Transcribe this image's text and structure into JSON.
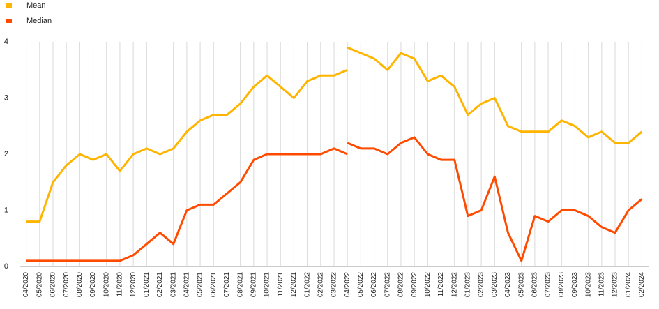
{
  "chart_data": {
    "type": "line",
    "categories": [
      "04/2020",
      "05/2020",
      "06/2020",
      "07/2020",
      "08/2020",
      "09/2020",
      "10/2020",
      "11/2020",
      "12/2020",
      "01/2021",
      "02/2021",
      "03/2021",
      "04/2021",
      "05/2021",
      "06/2021",
      "07/2021",
      "08/2021",
      "09/2021",
      "10/2021",
      "11/2021",
      "12/2021",
      "01/2022",
      "02/2022",
      "03/2022",
      "04/2022",
      "05/2022",
      "06/2022",
      "07/2022",
      "08/2022",
      "09/2022",
      "10/2022",
      "11/2022",
      "12/2022",
      "01/2023",
      "02/2023",
      "03/2023",
      "04/2023",
      "05/2023",
      "06/2023",
      "07/2023",
      "08/2023",
      "09/2023",
      "10/2023",
      "11/2023",
      "12/2023",
      "01/2024",
      "02/2024"
    ],
    "series": [
      {
        "name": "Mean",
        "color": "#ffb400",
        "values": [
          0.8,
          0.8,
          1.5,
          1.8,
          2.0,
          1.9,
          2.0,
          1.7,
          2.0,
          2.1,
          2.0,
          2.1,
          2.4,
          2.6,
          2.7,
          2.7,
          2.9,
          3.2,
          3.4,
          3.2,
          3.0,
          3.3,
          3.4,
          3.4,
          3.5,
          null,
          null,
          null,
          null,
          null,
          null,
          null,
          null,
          null,
          null,
          null,
          null,
          null,
          null,
          null,
          null,
          null,
          null,
          null,
          null,
          null,
          null
        ],
        "values_new": [
          null,
          null,
          null,
          null,
          null,
          null,
          null,
          null,
          null,
          null,
          null,
          null,
          null,
          null,
          null,
          null,
          null,
          null,
          null,
          null,
          null,
          null,
          null,
          null,
          3.9,
          3.8,
          3.7,
          3.5,
          3.8,
          3.7,
          3.3,
          3.4,
          3.2,
          2.7,
          2.9,
          3.0,
          2.5,
          2.4,
          2.4,
          2.4,
          2.6,
          2.5,
          2.3,
          2.4,
          2.2,
          2.2,
          2.4
        ]
      },
      {
        "name": "Median",
        "color": "#ff4b00",
        "values": [
          0.1,
          0.1,
          0.1,
          0.1,
          0.1,
          0.1,
          0.1,
          0.1,
          0.2,
          0.4,
          0.6,
          0.4,
          1.0,
          1.1,
          1.1,
          1.3,
          1.5,
          1.9,
          2.0,
          2.0,
          2.0,
          2.0,
          2.0,
          2.1,
          2.0,
          null,
          null,
          null,
          null,
          null,
          null,
          null,
          null,
          null,
          null,
          null,
          null,
          null,
          null,
          null,
          null,
          null,
          null,
          null,
          null,
          null,
          null
        ],
        "values_new": [
          null,
          null,
          null,
          null,
          null,
          null,
          null,
          null,
          null,
          null,
          null,
          null,
          null,
          null,
          null,
          null,
          null,
          null,
          null,
          null,
          null,
          null,
          null,
          null,
          2.2,
          2.1,
          2.1,
          2.0,
          2.2,
          2.3,
          2.0,
          1.9,
          1.9,
          0.9,
          1.0,
          1.6,
          0.6,
          0.1,
          0.9,
          0.8,
          1.0,
          1.0,
          0.9,
          0.7,
          0.6,
          1.0,
          1.2
        ]
      }
    ],
    "ylim": [
      0,
      4
    ],
    "yticks": [
      0,
      1,
      2,
      3,
      4
    ],
    "grid": true
  }
}
